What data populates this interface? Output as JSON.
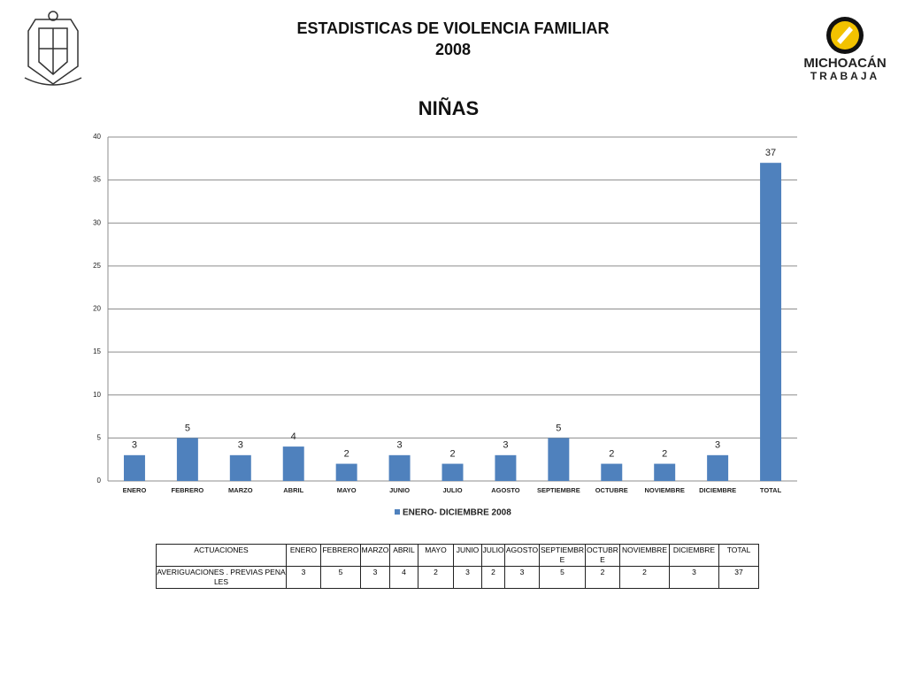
{
  "header": {
    "title": "ESTADISTICAS DE VIOLENCIA FAMILIAR",
    "year": "2008"
  },
  "logo": {
    "line1": "MICHOACÁN",
    "line2": "TRABAJA"
  },
  "chart_data": {
    "type": "bar",
    "title": "NIÑAS",
    "categories": [
      "ENERO",
      "FEBRERO",
      "MARZO",
      "ABRIL",
      "MAYO",
      "JUNIO",
      "JULIO",
      "AGOSTO",
      "SEPTIEMBRE",
      "OCTUBRE",
      "NOVIEMBRE",
      "DICIEMBRE",
      "TOTAL"
    ],
    "series": [
      {
        "name": "ENERO- DICIEMBRE 2008",
        "color": "#4f81bd",
        "values": [
          3,
          5,
          3,
          4,
          2,
          3,
          2,
          3,
          5,
          2,
          2,
          3,
          37
        ]
      }
    ],
    "ylim": [
      0,
      40
    ],
    "yticks": [
      0,
      5,
      10,
      15,
      20,
      25,
      30,
      35,
      40
    ],
    "grid": true,
    "legend": "bottom"
  },
  "table": {
    "header": [
      "ACTUACIONES",
      "ENERO",
      "FEBRERO",
      "MARZO",
      "ABRIL",
      "MAYO",
      "JUNIO",
      "JULIO",
      "AGOSTO",
      "SEPTIEMBRE",
      "OCTUBRE",
      "NOVIEMBRE",
      "DICIEMBRE",
      "TOTAL"
    ],
    "rows": [
      [
        "AVERIGUACIONES . PREVIAS PENALES",
        3,
        5,
        3,
        4,
        2,
        3,
        2,
        3,
        5,
        2,
        2,
        3,
        37
      ]
    ]
  }
}
